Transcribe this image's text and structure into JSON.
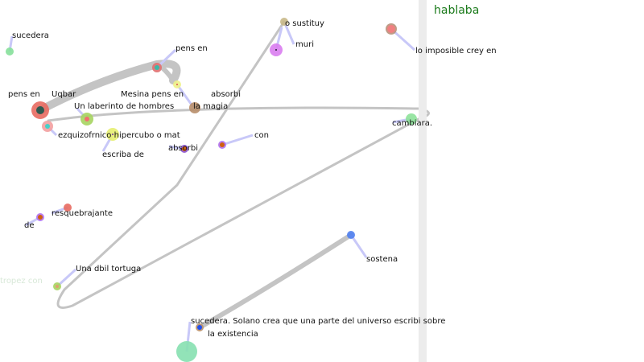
{
  "header": {
    "title": "hablaba",
    "title_color": "#1a7a1a"
  },
  "labels": {
    "sucedera_top": "sucedera",
    "pens_en_top": "pens en",
    "sustituy": "o sustituy",
    "muri": "muri",
    "imposible": "lo imposible crey en",
    "pens_en_left": "pens en",
    "uqbar": "Uqbar",
    "laberinto": "Un laberinto de hombres",
    "mesina": "Mesina pens en",
    "magia": "la magia",
    "absorbi_mid": "absorbi",
    "cambiara": "cambiara.",
    "ezquizofrnico": "ezquizofrnico hipercubo o mat",
    "escriba": "escriba de",
    "absorbi_low": "absorbi",
    "con": "con",
    "resquebrajante": "resquebrajante",
    "de": "de",
    "tortuga": "Una dbil tortuga",
    "tropez": "tropez con",
    "sostena": "sostena",
    "solano": "sucedera. Solano crea que una parte del universo escribi sobre",
    "existencia": "la existencia"
  },
  "colors": {
    "edge": "#c4c4c4",
    "link": "#c8c8f8",
    "divider": "#ececec"
  }
}
